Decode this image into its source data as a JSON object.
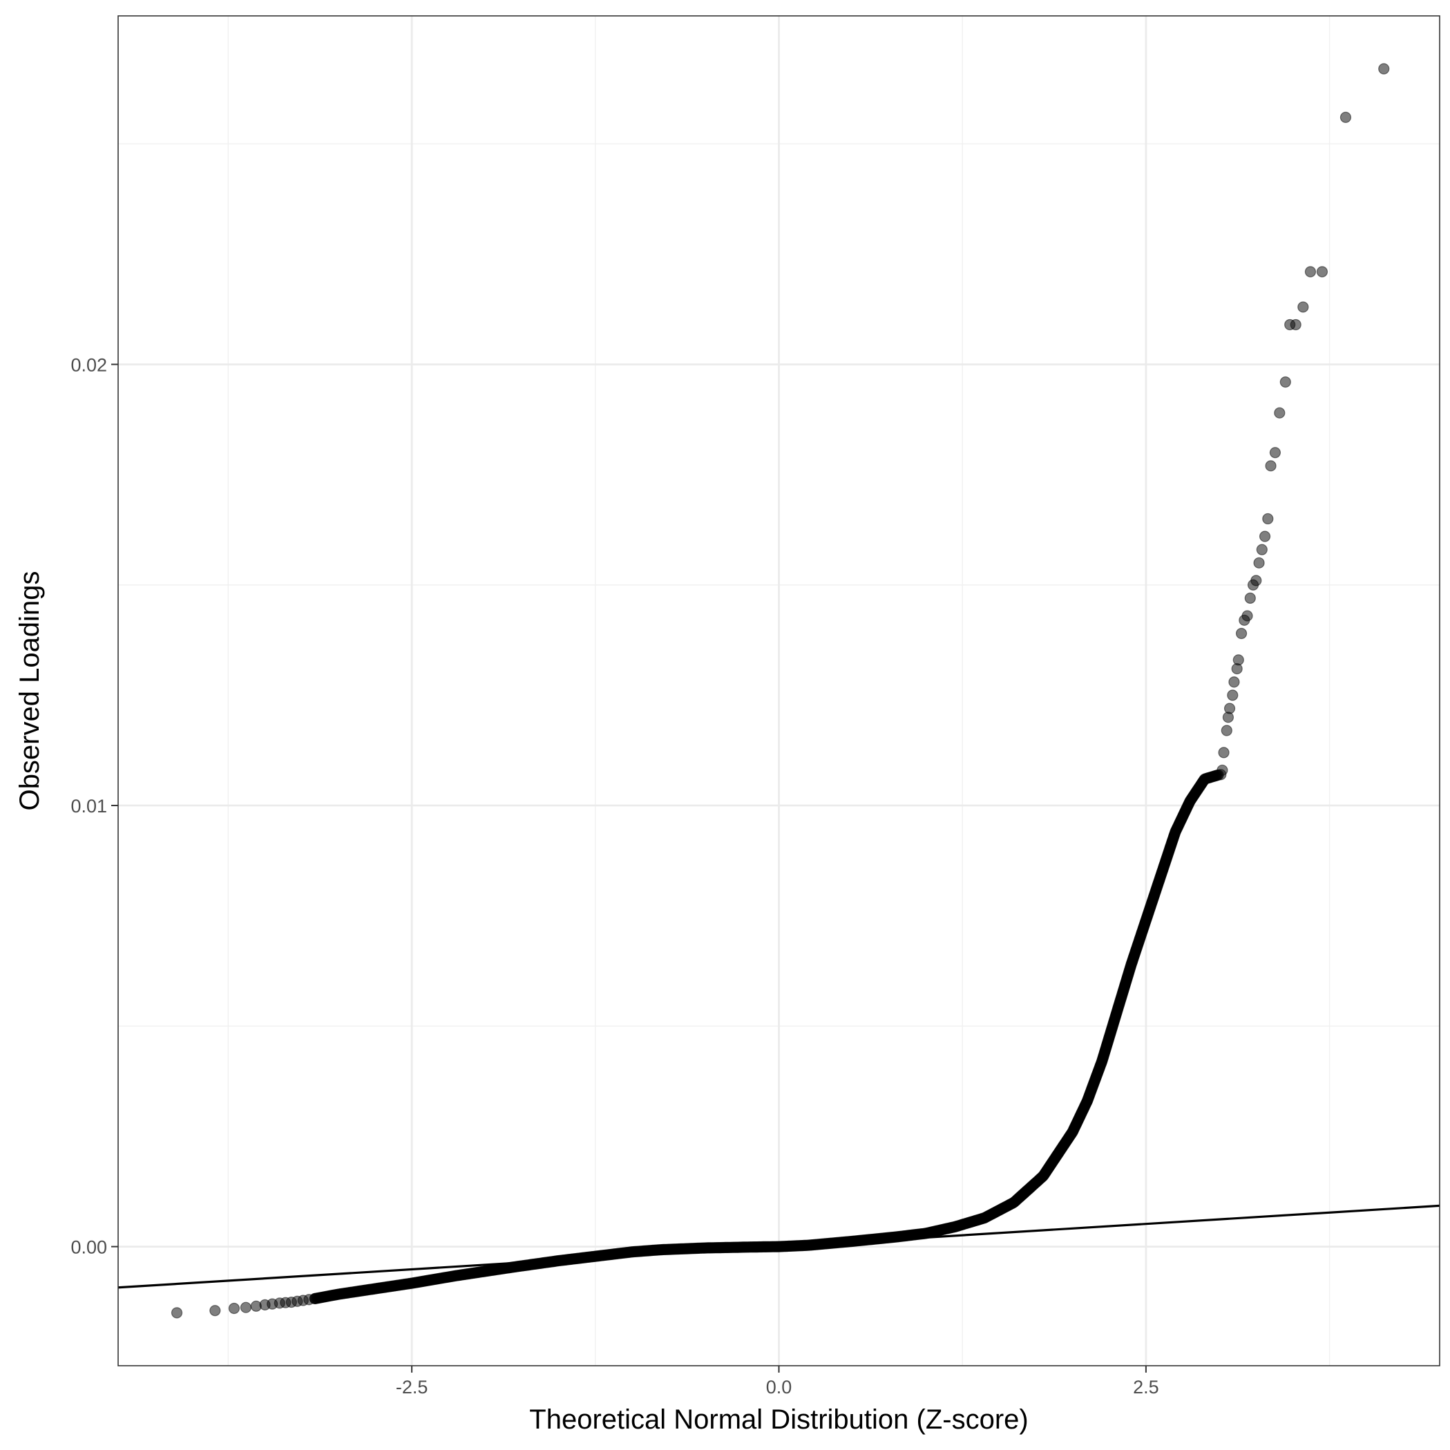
{
  "chart_data": {
    "type": "scatter",
    "title": "",
    "xlabel": "Theoretical Normal Distribution (Z-score)",
    "ylabel": "Observed Loadings",
    "xlim": [
      -4.5,
      4.5
    ],
    "ylim": [
      -0.0027,
      0.0279
    ],
    "x_ticks": [
      -2.5,
      0.0,
      2.5
    ],
    "x_tick_labels": [
      "-2.5",
      "0.0",
      "2.5"
    ],
    "y_ticks": [
      0.0,
      0.01,
      0.02
    ],
    "y_tick_labels": [
      "0.00",
      "0.01",
      "0.02"
    ],
    "grid": true,
    "legend": "none",
    "reference_line": {
      "type": "qq-line",
      "intercept": 0.0,
      "slope": 0.000206
    },
    "point_color": "#000000",
    "point_opacity": 0.5,
    "points": [
      [
        -4.1,
        -0.0015
      ],
      [
        -3.84,
        -0.00145
      ],
      [
        -3.71,
        -0.0014
      ],
      [
        -3.63,
        -0.00138
      ],
      [
        -3.56,
        -0.00135
      ],
      [
        -3.5,
        -0.00132
      ],
      [
        -3.45,
        -0.0013
      ],
      [
        -3.4,
        -0.00128
      ],
      [
        -3.36,
        -0.00127
      ],
      [
        -3.32,
        -0.00126
      ],
      [
        -3.28,
        -0.00124
      ],
      [
        -3.24,
        -0.00122
      ],
      [
        -3.2,
        -0.0012
      ],
      [
        -3.16,
        -0.00118
      ],
      [
        4.12,
        0.0267
      ],
      [
        3.86,
        0.0256
      ],
      [
        3.7,
        0.0221
      ],
      [
        3.62,
        0.0221
      ],
      [
        3.57,
        0.0213
      ],
      [
        3.52,
        0.0209
      ],
      [
        3.48,
        0.0209
      ],
      [
        3.45,
        0.0196
      ],
      [
        3.41,
        0.0189
      ],
      [
        3.38,
        0.018
      ],
      [
        3.35,
        0.0177
      ],
      [
        3.33,
        0.0165
      ],
      [
        3.31,
        0.0161
      ],
      [
        3.29,
        0.0158
      ],
      [
        3.27,
        0.0155
      ],
      [
        3.25,
        0.0151
      ],
      [
        3.23,
        0.015
      ],
      [
        3.21,
        0.0147
      ],
      [
        3.19,
        0.0143
      ],
      [
        3.17,
        0.0142
      ],
      [
        3.15,
        0.0139
      ],
      [
        3.13,
        0.0133
      ],
      [
        3.12,
        0.0131
      ],
      [
        3.1,
        0.0128
      ],
      [
        3.09,
        0.0125
      ],
      [
        3.07,
        0.0122
      ],
      [
        3.06,
        0.012
      ],
      [
        3.05,
        0.0117
      ],
      [
        3.03,
        0.0112
      ],
      [
        3.02,
        0.0108
      ],
      [
        3.01,
        0.0107
      ]
    ],
    "body_quantiles": [
      [
        -3.16,
        -0.00118
      ],
      [
        -3.0,
        -0.00108
      ],
      [
        -2.8,
        -0.00098
      ],
      [
        -2.5,
        -0.00083
      ],
      [
        -2.2,
        -0.00066
      ],
      [
        -2.0,
        -0.00056
      ],
      [
        -1.8,
        -0.00046
      ],
      [
        -1.5,
        -0.00032
      ],
      [
        -1.2,
        -0.0002
      ],
      [
        -1.0,
        -0.00012
      ],
      [
        -0.8,
        -7e-05
      ],
      [
        -0.5,
        -3e-05
      ],
      [
        -0.2,
        -1e-05
      ],
      [
        0.0,
        0.0
      ],
      [
        0.2,
        3e-05
      ],
      [
        0.5,
        0.00012
      ],
      [
        0.8,
        0.00022
      ],
      [
        1.0,
        0.0003
      ],
      [
        1.2,
        0.00045
      ],
      [
        1.4,
        0.00065
      ],
      [
        1.6,
        0.001
      ],
      [
        1.8,
        0.0016
      ],
      [
        2.0,
        0.0026
      ],
      [
        2.1,
        0.0033
      ],
      [
        2.2,
        0.0042
      ],
      [
        2.3,
        0.0053
      ],
      [
        2.4,
        0.0064
      ],
      [
        2.5,
        0.0074
      ],
      [
        2.6,
        0.0084
      ],
      [
        2.7,
        0.0094
      ],
      [
        2.8,
        0.0101
      ],
      [
        2.9,
        0.0106
      ],
      [
        3.0,
        0.0107
      ]
    ]
  }
}
